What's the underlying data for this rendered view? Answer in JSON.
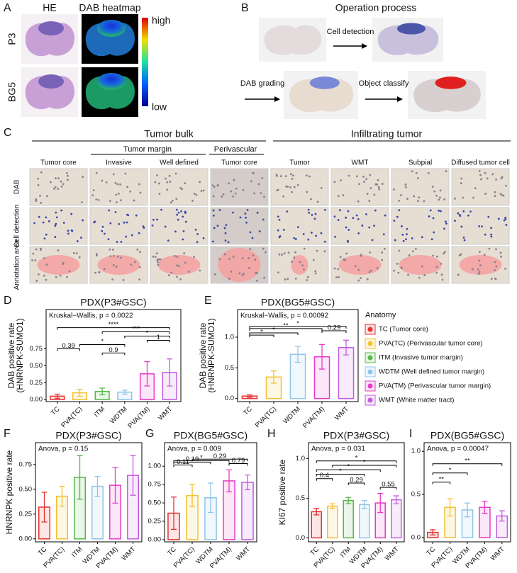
{
  "panel_a": {
    "letter": "A",
    "columns": [
      "HE",
      "DAB heatmap"
    ],
    "rows": [
      "P3",
      "BG5"
    ],
    "scale_high": "high",
    "scale_low": "low"
  },
  "panel_b": {
    "letter": "B",
    "title": "Operation process",
    "steps": [
      "Cell detection",
      "DAB grading",
      "Object classify"
    ]
  },
  "panel_c": {
    "letter": "C",
    "groups": [
      "Tumor bulk",
      "Infiltrating tumor"
    ],
    "subgroups": [
      "Tumor margin",
      "Perivascular"
    ],
    "columns": [
      "Tumor core",
      "Invasive",
      "Well defined",
      "Tumor core",
      "Tumor",
      "WMT",
      "Subpial",
      "Diffused tumor cell"
    ],
    "rows": [
      "DAB",
      "Cell detection",
      "Annotation area"
    ]
  },
  "chart_data": [
    {
      "type": "bar",
      "panel": "D",
      "title": "PDX(P3#GSC)",
      "annotation": "Kruskal−Wallis, p = 0.0022",
      "y_label": [
        "DAB positive rate",
        "(HNRNPK-SUMO1)"
      ],
      "categories": [
        "TC",
        "PVA(TC)",
        "ITM",
        "WDTM",
        "PVA(TM)",
        "WMT"
      ],
      "values": [
        0.05,
        0.1,
        0.12,
        0.11,
        0.38,
        0.4
      ],
      "errors": [
        0.03,
        0.05,
        0.05,
        0.03,
        0.18,
        0.2
      ],
      "colors": [
        "#e8312f",
        "#f2c12e",
        "#55b848",
        "#8fc4e8",
        "#e63bc6",
        "#c35ce0"
      ],
      "ylim": [
        -0.03,
        1.33
      ],
      "yticks": [
        {
          "value": 0,
          "label": "0.00"
        },
        0.25,
        {
          "value": 0.5,
          "label": "0.50"
        },
        0.75
      ],
      "brackets": [
        {
          "from": "TC",
          "to": "WMT",
          "label": "****"
        },
        {
          "from": "ITM",
          "to": "WMT",
          "label": "***"
        },
        {
          "from": "WDTM",
          "to": "WMT",
          "label": "*"
        },
        {
          "from": "PVA(TM)",
          "to": "WMT",
          "label": "1"
        },
        {
          "from": "PVA(TC)",
          "to": "WDTM",
          "label": "*"
        },
        {
          "from": "TC",
          "to": "PVA(TC)",
          "label": "0.39"
        },
        {
          "from": "ITM",
          "to": "WDTM",
          "label": "0.9"
        }
      ]
    },
    {
      "type": "bar",
      "panel": "E",
      "title": "PDX(BG5#GSC)",
      "annotation": "Kruskal−Wallis, p = 0.00092",
      "y_label": [
        "DAB positive rate",
        "(HNRNPK-SUMO1)"
      ],
      "categories": [
        "TC",
        "PVA(TC)",
        "WDTM",
        "PVA(TM)",
        "WMT"
      ],
      "values": [
        0.04,
        0.35,
        0.72,
        0.68,
        0.83
      ],
      "errors": [
        0.02,
        0.1,
        0.13,
        0.2,
        0.12
      ],
      "colors": [
        "#e8312f",
        "#f2c12e",
        "#8fc4e8",
        "#e63bc6",
        "#c35ce0"
      ],
      "ylim": [
        -0.05,
        1.45
      ],
      "yticks": [
        {
          "value": 0,
          "label": "0.0"
        },
        0.5,
        {
          "value": 1,
          "label": "1.0"
        }
      ],
      "brackets": [
        {
          "from": "TC",
          "to": "WMT",
          "label": "*"
        },
        {
          "from": "TC",
          "to": "PVA(TM)",
          "label": "**"
        },
        {
          "from": "PVA(TM)",
          "to": "WMT",
          "label": "0.29"
        },
        {
          "from": "TC",
          "to": "WDTM",
          "label": "*"
        },
        {
          "from": "TC",
          "to": "PVA(TC)",
          "label": "*"
        }
      ],
      "legend": {
        "title": "Anatomy",
        "entries": [
          {
            "name": "TC (Tumor core)",
            "color": "#e8312f"
          },
          {
            "name": "PVA(TC) (Perivascular tumor core)",
            "color": "#f2c12e"
          },
          {
            "name": "ITM (Invasive tumor margin)",
            "color": "#55b848"
          },
          {
            "name": "WDTM (Well defined tumor margin)",
            "color": "#8fc4e8"
          },
          {
            "name": "PVA(TM) (Perivascular tumor margin)",
            "color": "#e63bc6"
          },
          {
            "name": "WMT (White matter tract)",
            "color": "#c35ce0"
          }
        ]
      }
    },
    {
      "type": "bar",
      "panel": "F",
      "title": "PDX(P3#GSC)",
      "annotation": "Anova, p = 0.15",
      "y_label": [
        "HNRNPK positive rate"
      ],
      "categories": [
        "TC",
        "PVA(TC)",
        "ITM",
        "WDTM",
        "PVA(TM)",
        "WMT"
      ],
      "values": [
        0.32,
        0.43,
        0.62,
        0.53,
        0.54,
        0.64
      ],
      "errors": [
        0.15,
        0.1,
        0.22,
        0.1,
        0.18,
        0.2
      ],
      "colors": [
        "#e8312f",
        "#f2c12e",
        "#55b848",
        "#8fc4e8",
        "#e63bc6",
        "#c35ce0"
      ],
      "ylim": [
        -0.03,
        0.97
      ],
      "yticks": [
        {
          "value": 0,
          "label": "0.00"
        },
        0.25,
        {
          "value": 0.5,
          "label": "0.50"
        },
        0.75
      ],
      "brackets": []
    },
    {
      "type": "bar",
      "panel": "G",
      "title": "PDX(BG5#GSC)",
      "annotation": "Anova, p = 0.009",
      "categories": [
        "TC",
        "PVA(TC)",
        "WDTM",
        "PVA(TM)",
        "WMT"
      ],
      "values": [
        0.36,
        0.6,
        0.57,
        0.8,
        0.78
      ],
      "errors": [
        0.22,
        0.15,
        0.2,
        0.15,
        0.1
      ],
      "colors": [
        "#e8312f",
        "#f2c12e",
        "#8fc4e8",
        "#e63bc6",
        "#c35ce0"
      ],
      "ylim": [
        -0.03,
        1.32
      ],
      "yticks": [
        {
          "value": 0,
          "label": "0.00"
        },
        0.25,
        {
          "value": 0.5,
          "label": "0.50"
        },
        0.75,
        {
          "value": 1,
          "label": "1.00"
        }
      ],
      "brackets": [
        {
          "from": "PVA(TC)",
          "to": "WMT",
          "label": "0.29"
        },
        {
          "from": "TC",
          "to": "PVA(TM)",
          "label": "*"
        },
        {
          "from": "TC",
          "to": "WDTM",
          "label": "0.19"
        },
        {
          "from": "PVA(TM)",
          "to": "WMT",
          "label": "0.79"
        },
        {
          "from": "TC",
          "to": "PVA(TC)",
          "label": "0.11"
        }
      ]
    },
    {
      "type": "bar",
      "panel": "H",
      "title": "PDX(P3#GSC)",
      "annotation": "Anova, p = 0.031",
      "y_label": [
        "KI67 positive rate"
      ],
      "categories": [
        "TC",
        "PVA(TC)",
        "ITM",
        "WDTM",
        "PVA(TM)",
        "WMT"
      ],
      "values": [
        0.33,
        0.4,
        0.47,
        0.42,
        0.44,
        0.48
      ],
      "errors": [
        0.04,
        0.03,
        0.04,
        0.05,
        0.12,
        0.05
      ],
      "colors": [
        "#e8312f",
        "#f2c12e",
        "#55b848",
        "#8fc4e8",
        "#e63bc6",
        "#c35ce0"
      ],
      "ylim": [
        -0.05,
        1.2
      ],
      "yticks": [
        {
          "value": 0,
          "label": "0.0"
        },
        0.5,
        {
          "value": 1,
          "label": "1.0"
        }
      ],
      "brackets": [
        {
          "from": "TC",
          "to": "WMT",
          "label": "*"
        },
        {
          "from": "PVA(TC)",
          "to": "WMT",
          "label": "*"
        },
        {
          "from": "TC",
          "to": "PVA(TM)",
          "label": "*"
        },
        {
          "from": "TC",
          "to": "WDTM",
          "label": "*"
        },
        {
          "from": "TC",
          "to": "PVA(TC)",
          "label": "0.4"
        },
        {
          "from": "ITM",
          "to": "WDTM",
          "label": "0.29"
        },
        {
          "from": "PVA(TM)",
          "to": "WMT",
          "label": "0.55"
        }
      ]
    },
    {
      "type": "bar",
      "panel": "I",
      "title": "PDX(BG5#GSC)",
      "annotation": "Anova, p = 0.00047",
      "categories": [
        "TC",
        "PVA(TC)",
        "WDTM",
        "PVA(TM)",
        "WMT"
      ],
      "values": [
        0.06,
        0.35,
        0.32,
        0.35,
        0.25
      ],
      "errors": [
        0.03,
        0.1,
        0.08,
        0.07,
        0.06
      ],
      "colors": [
        "#e8312f",
        "#f2c12e",
        "#8fc4e8",
        "#e63bc6",
        "#c35ce0"
      ],
      "ylim": [
        -0.05,
        1.1
      ],
      "yticks": [
        {
          "value": 0,
          "label": "0.0"
        },
        0.5,
        {
          "value": 1,
          "label": "1.0"
        }
      ],
      "brackets": [
        {
          "from": "TC",
          "to": "WMT",
          "label": "**"
        },
        {
          "from": "TC",
          "to": "WDTM",
          "label": "*"
        },
        {
          "from": "TC",
          "to": "PVA(TC)",
          "label": "**"
        }
      ]
    }
  ]
}
